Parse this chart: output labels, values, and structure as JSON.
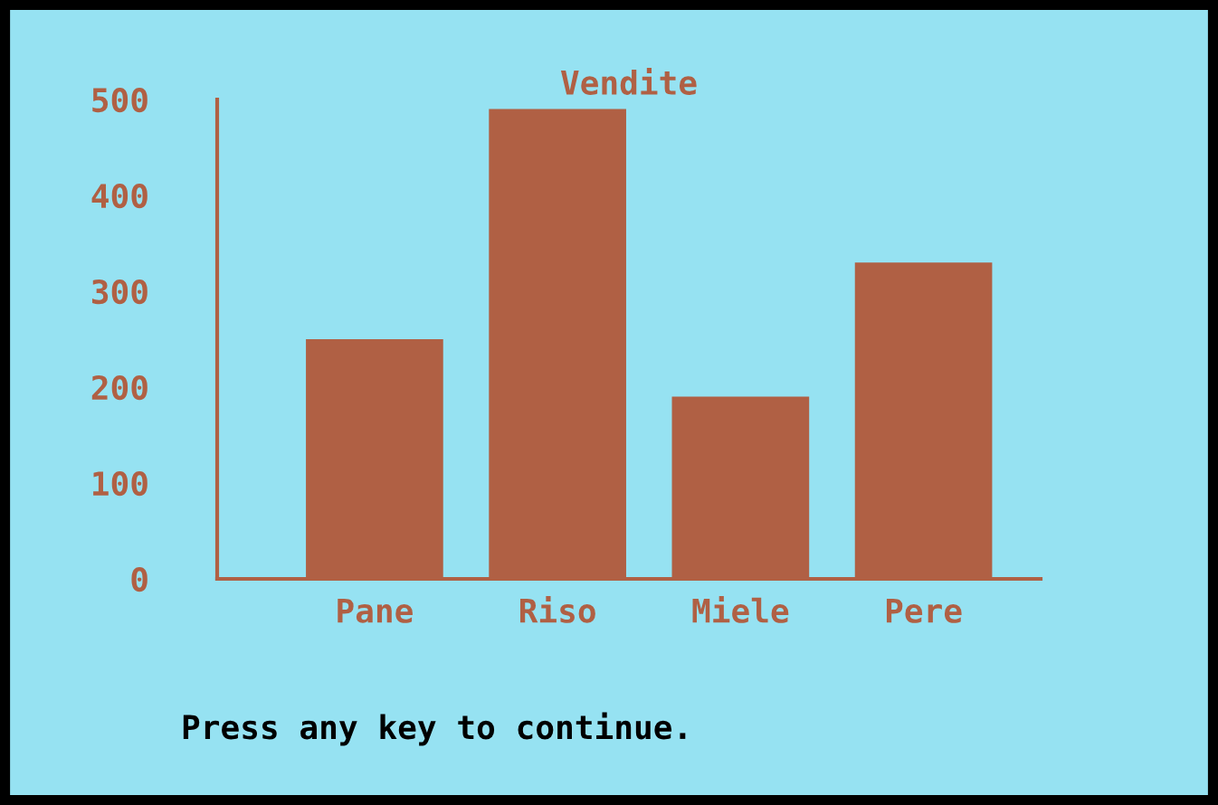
{
  "chart_data": {
    "type": "bar",
    "title": "Vendite",
    "categories": [
      "Pane",
      "Riso",
      "Miele",
      "Pere"
    ],
    "values": [
      250,
      490,
      190,
      330
    ],
    "color": "#b06044",
    "ylim": [
      0,
      500
    ],
    "yticks": [
      0,
      100,
      200,
      300,
      400,
      500
    ],
    "grid": false,
    "annotations": [
      "Press any key to continue."
    ]
  }
}
